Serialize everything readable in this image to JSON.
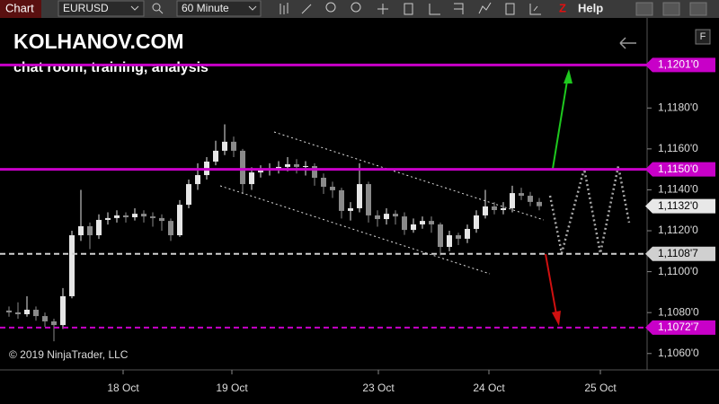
{
  "toolbar": {
    "tab": "Chart",
    "instrument": "EURUSD",
    "interval": "60 Minute",
    "z": "Z",
    "help": "Help"
  },
  "panel_button": "F",
  "chart_data": {
    "type": "candlestick",
    "title": "KOLHANOV.COM",
    "subtitle": "chat room, training, analysis",
    "copyright": "© 2019 NinjaTrader, LLC",
    "up_color": "#e6e6e6",
    "down_color": "#8a8a8a",
    "x": [
      2,
      4,
      6,
      8,
      10,
      12,
      14,
      16,
      18,
      20,
      22,
      24,
      26,
      28,
      30,
      32,
      34,
      36,
      38,
      40,
      42,
      44,
      46,
      48,
      50,
      52,
      54,
      56,
      58,
      60,
      62,
      64,
      66,
      68,
      70,
      72,
      74,
      76,
      78,
      80,
      82,
      84,
      86,
      88,
      90,
      92,
      94,
      96,
      98,
      100,
      102,
      104,
      106,
      108,
      110,
      112,
      114,
      116,
      118,
      120
    ],
    "open": [
      1.1081,
      1.10801,
      1.10792,
      1.10814,
      1.10783,
      1.10757,
      1.10739,
      1.1088,
      1.11178,
      1.11222,
      1.11178,
      1.11253,
      1.11262,
      1.11275,
      1.11266,
      1.11283,
      1.1127,
      1.11262,
      1.11248,
      1.11178,
      1.11327,
      1.11428,
      1.11472,
      1.11538,
      1.11591,
      1.11635,
      1.11591,
      1.11428,
      1.11485,
      1.11494,
      1.11503,
      1.11512,
      1.11525,
      1.11512,
      1.11516,
      1.11459,
      1.11415,
      1.11398,
      1.11297,
      1.1131,
      1.11428,
      1.11275,
      1.11257,
      1.11283,
      1.1127,
      1.11204,
      1.11231,
      1.11248,
      1.11231,
      1.11121,
      1.11178,
      1.11161,
      1.11209,
      1.11275,
      1.11319,
      1.11301,
      1.1131,
      1.11384,
      1.11371,
      1.11341
    ],
    "high": [
      1.1083,
      1.1085,
      1.1088,
      1.1083,
      1.108,
      1.1077,
      1.1092,
      1.112,
      1.114,
      1.1124,
      1.1128,
      1.1129,
      1.113,
      1.1129,
      1.1131,
      1.113,
      1.1129,
      1.1128,
      1.1126,
      1.1135,
      1.1145,
      1.1153,
      1.1156,
      1.1164,
      1.1172,
      1.1166,
      1.116,
      1.1151,
      1.1152,
      1.1153,
      1.1154,
      1.1156,
      1.1155,
      1.1154,
      1.1153,
      1.1148,
      1.1144,
      1.1141,
      1.1134,
      1.1153,
      1.1144,
      1.113,
      1.1131,
      1.113,
      1.1129,
      1.1126,
      1.1127,
      1.1127,
      1.1124,
      1.112,
      1.1119,
      1.1123,
      1.113,
      1.114,
      1.1134,
      1.1134,
      1.1142,
      1.1141,
      1.1139,
      1.1136
    ],
    "low": [
      1.1078,
      1.1077,
      1.1078,
      1.1076,
      1.1073,
      1.1066,
      1.1072,
      1.1087,
      1.1115,
      1.1111,
      1.1116,
      1.1123,
      1.1124,
      1.1124,
      1.1125,
      1.1124,
      1.1122,
      1.112,
      1.1115,
      1.1117,
      1.1131,
      1.114,
      1.1145,
      1.1152,
      1.1157,
      1.1156,
      1.1138,
      1.114,
      1.1146,
      1.1147,
      1.1148,
      1.1149,
      1.1148,
      1.1147,
      1.1142,
      1.1138,
      1.1136,
      1.1126,
      1.1125,
      1.1129,
      1.1124,
      1.1122,
      1.1123,
      1.1123,
      1.1118,
      1.1119,
      1.1121,
      1.1119,
      1.1108,
      1.111,
      1.1113,
      1.1114,
      1.1119,
      1.1126,
      1.1128,
      1.1128,
      1.1129,
      1.1135,
      1.1132,
      1.113
    ],
    "close": [
      1.10801,
      1.10792,
      1.10814,
      1.10783,
      1.10757,
      1.10739,
      1.1088,
      1.11178,
      1.11222,
      1.11178,
      1.11253,
      1.11262,
      1.11275,
      1.11266,
      1.11283,
      1.1127,
      1.11262,
      1.11248,
      1.11178,
      1.11327,
      1.11428,
      1.11472,
      1.11538,
      1.11591,
      1.11635,
      1.11591,
      1.11428,
      1.11485,
      1.11494,
      1.11503,
      1.11512,
      1.11525,
      1.11512,
      1.11516,
      1.11459,
      1.11415,
      1.11398,
      1.11297,
      1.1131,
      1.11428,
      1.11275,
      1.11257,
      1.11283,
      1.1127,
      1.11204,
      1.11231,
      1.11248,
      1.11231,
      1.11121,
      1.11178,
      1.11161,
      1.11209,
      1.11275,
      1.11319,
      1.11301,
      1.1131,
      1.11384,
      1.11371,
      1.11341,
      1.1132
    ],
    "xlim": [
      0,
      144
    ],
    "xticks": [
      {
        "value": 27.4,
        "label": "18 Oct"
      },
      {
        "value": 51.6,
        "label": "19 Oct"
      },
      {
        "value": 84.2,
        "label": "23 Oct"
      },
      {
        "value": 108.8,
        "label": "24 Oct"
      },
      {
        "value": 133.6,
        "label": "25 Oct"
      }
    ],
    "ylim": [
      1.1052,
      1.1224
    ],
    "yticks": [
      {
        "value": 1.106,
        "label": "1,1060'0"
      },
      {
        "value": 1.108,
        "label": "1,1080'0"
      },
      {
        "value": 1.11,
        "label": "1,1100'0"
      },
      {
        "value": 1.112,
        "label": "1,1120'0"
      },
      {
        "value": 1.114,
        "label": "1,1140'0"
      },
      {
        "value": 1.116,
        "label": "1,1160'0"
      },
      {
        "value": 1.118,
        "label": "1,1180'0"
      }
    ],
    "levels": [
      {
        "value": 1.1201,
        "label": "1,1201'0",
        "color": "#c800c8",
        "style": "solid"
      },
      {
        "value": 1.115,
        "label": "1,1150'0",
        "color": "#c800c8",
        "style": "solid"
      },
      {
        "value": 1.11087,
        "label": "1,1108'7",
        "color": "#d0d0d0",
        "style": "dashed"
      },
      {
        "value": 1.10727,
        "label": "1,1072'7",
        "color": "#c800c8",
        "style": "dashed"
      }
    ],
    "last_price": {
      "value": 1.1132,
      "label": "1,1132'0"
    }
  }
}
